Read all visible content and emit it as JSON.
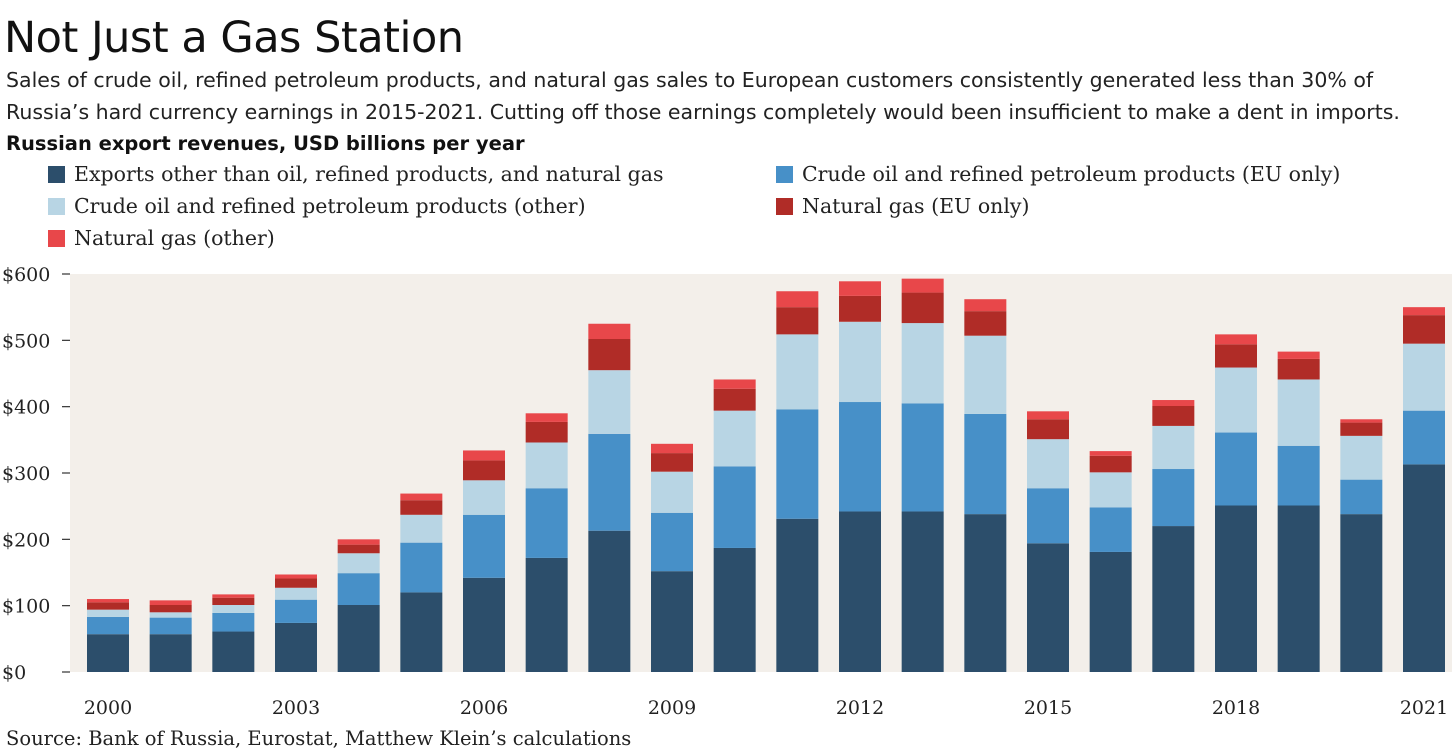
{
  "title": "Not Just a Gas Station",
  "subtitle": "Sales of crude oil, refined petroleum products, and natural gas sales to European customers consistently generated less than 30% of Russia’s hard currency earnings in 2015-2021. Cutting off those earnings completely would been insufficient to make a dent in imports.",
  "chart_label": "Russian export revenues, USD billions per year",
  "source": "Source: Bank of Russia, Eurostat, Matthew Klein’s calculations",
  "colors": {
    "plot_background": "#f3efea",
    "other_exports": "#2c4e6b",
    "oil_eu": "#4790c8",
    "oil_other": "#b8d5e4",
    "gas_eu": "#b02c27",
    "gas_other": "#e8474a"
  },
  "chart_data": {
    "type": "bar",
    "stacked": true,
    "categories": [
      "2000",
      "2001",
      "2002",
      "2003",
      "2004",
      "2005",
      "2006",
      "2007",
      "2008",
      "2009",
      "2010",
      "2011",
      "2012",
      "2013",
      "2014",
      "2015",
      "2016",
      "2017",
      "2018",
      "2019",
      "2020",
      "2021"
    ],
    "x_tick_labels": [
      "2000",
      "2003",
      "2006",
      "2009",
      "2012",
      "2015",
      "2018",
      "2021"
    ],
    "y_ticks": [
      "$0",
      "$100",
      "$200",
      "$300",
      "$400",
      "$500",
      "$600"
    ],
    "ylim": [
      0,
      600
    ],
    "grid": false,
    "legend_position": "top",
    "series": [
      {
        "name": "Exports other than oil, refined products, and natural gas",
        "color_key": "other_exports",
        "values": [
          57,
          57,
          61,
          74,
          101,
          120,
          142,
          172,
          213,
          152,
          187,
          231,
          242,
          242,
          238,
          194,
          181,
          220,
          251,
          251,
          238,
          313
        ]
      },
      {
        "name": "Crude oil and refined petroleum products (EU only)",
        "color_key": "oil_eu",
        "values": [
          26,
          25,
          28,
          35,
          48,
          75,
          95,
          105,
          146,
          88,
          123,
          165,
          165,
          163,
          151,
          83,
          67,
          86,
          110,
          90,
          52,
          81
        ]
      },
      {
        "name": "Crude oil and refined petroleum products (other)",
        "color_key": "oil_other",
        "values": [
          11,
          8,
          12,
          18,
          30,
          42,
          52,
          69,
          96,
          62,
          84,
          113,
          121,
          121,
          118,
          74,
          53,
          65,
          98,
          100,
          66,
          101
        ]
      },
      {
        "name": "Natural gas (EU only)",
        "color_key": "gas_eu",
        "values": [
          11,
          11,
          11,
          14,
          13,
          22,
          30,
          31,
          47,
          28,
          33,
          41,
          39,
          46,
          37,
          30,
          25,
          30,
          35,
          31,
          20,
          43
        ]
      },
      {
        "name": "Natural gas (other)",
        "color_key": "gas_other",
        "values": [
          5,
          7,
          5,
          6,
          8,
          10,
          15,
          13,
          23,
          14,
          14,
          24,
          22,
          21,
          18,
          12,
          7,
          9,
          15,
          11,
          5,
          12
        ]
      }
    ]
  }
}
